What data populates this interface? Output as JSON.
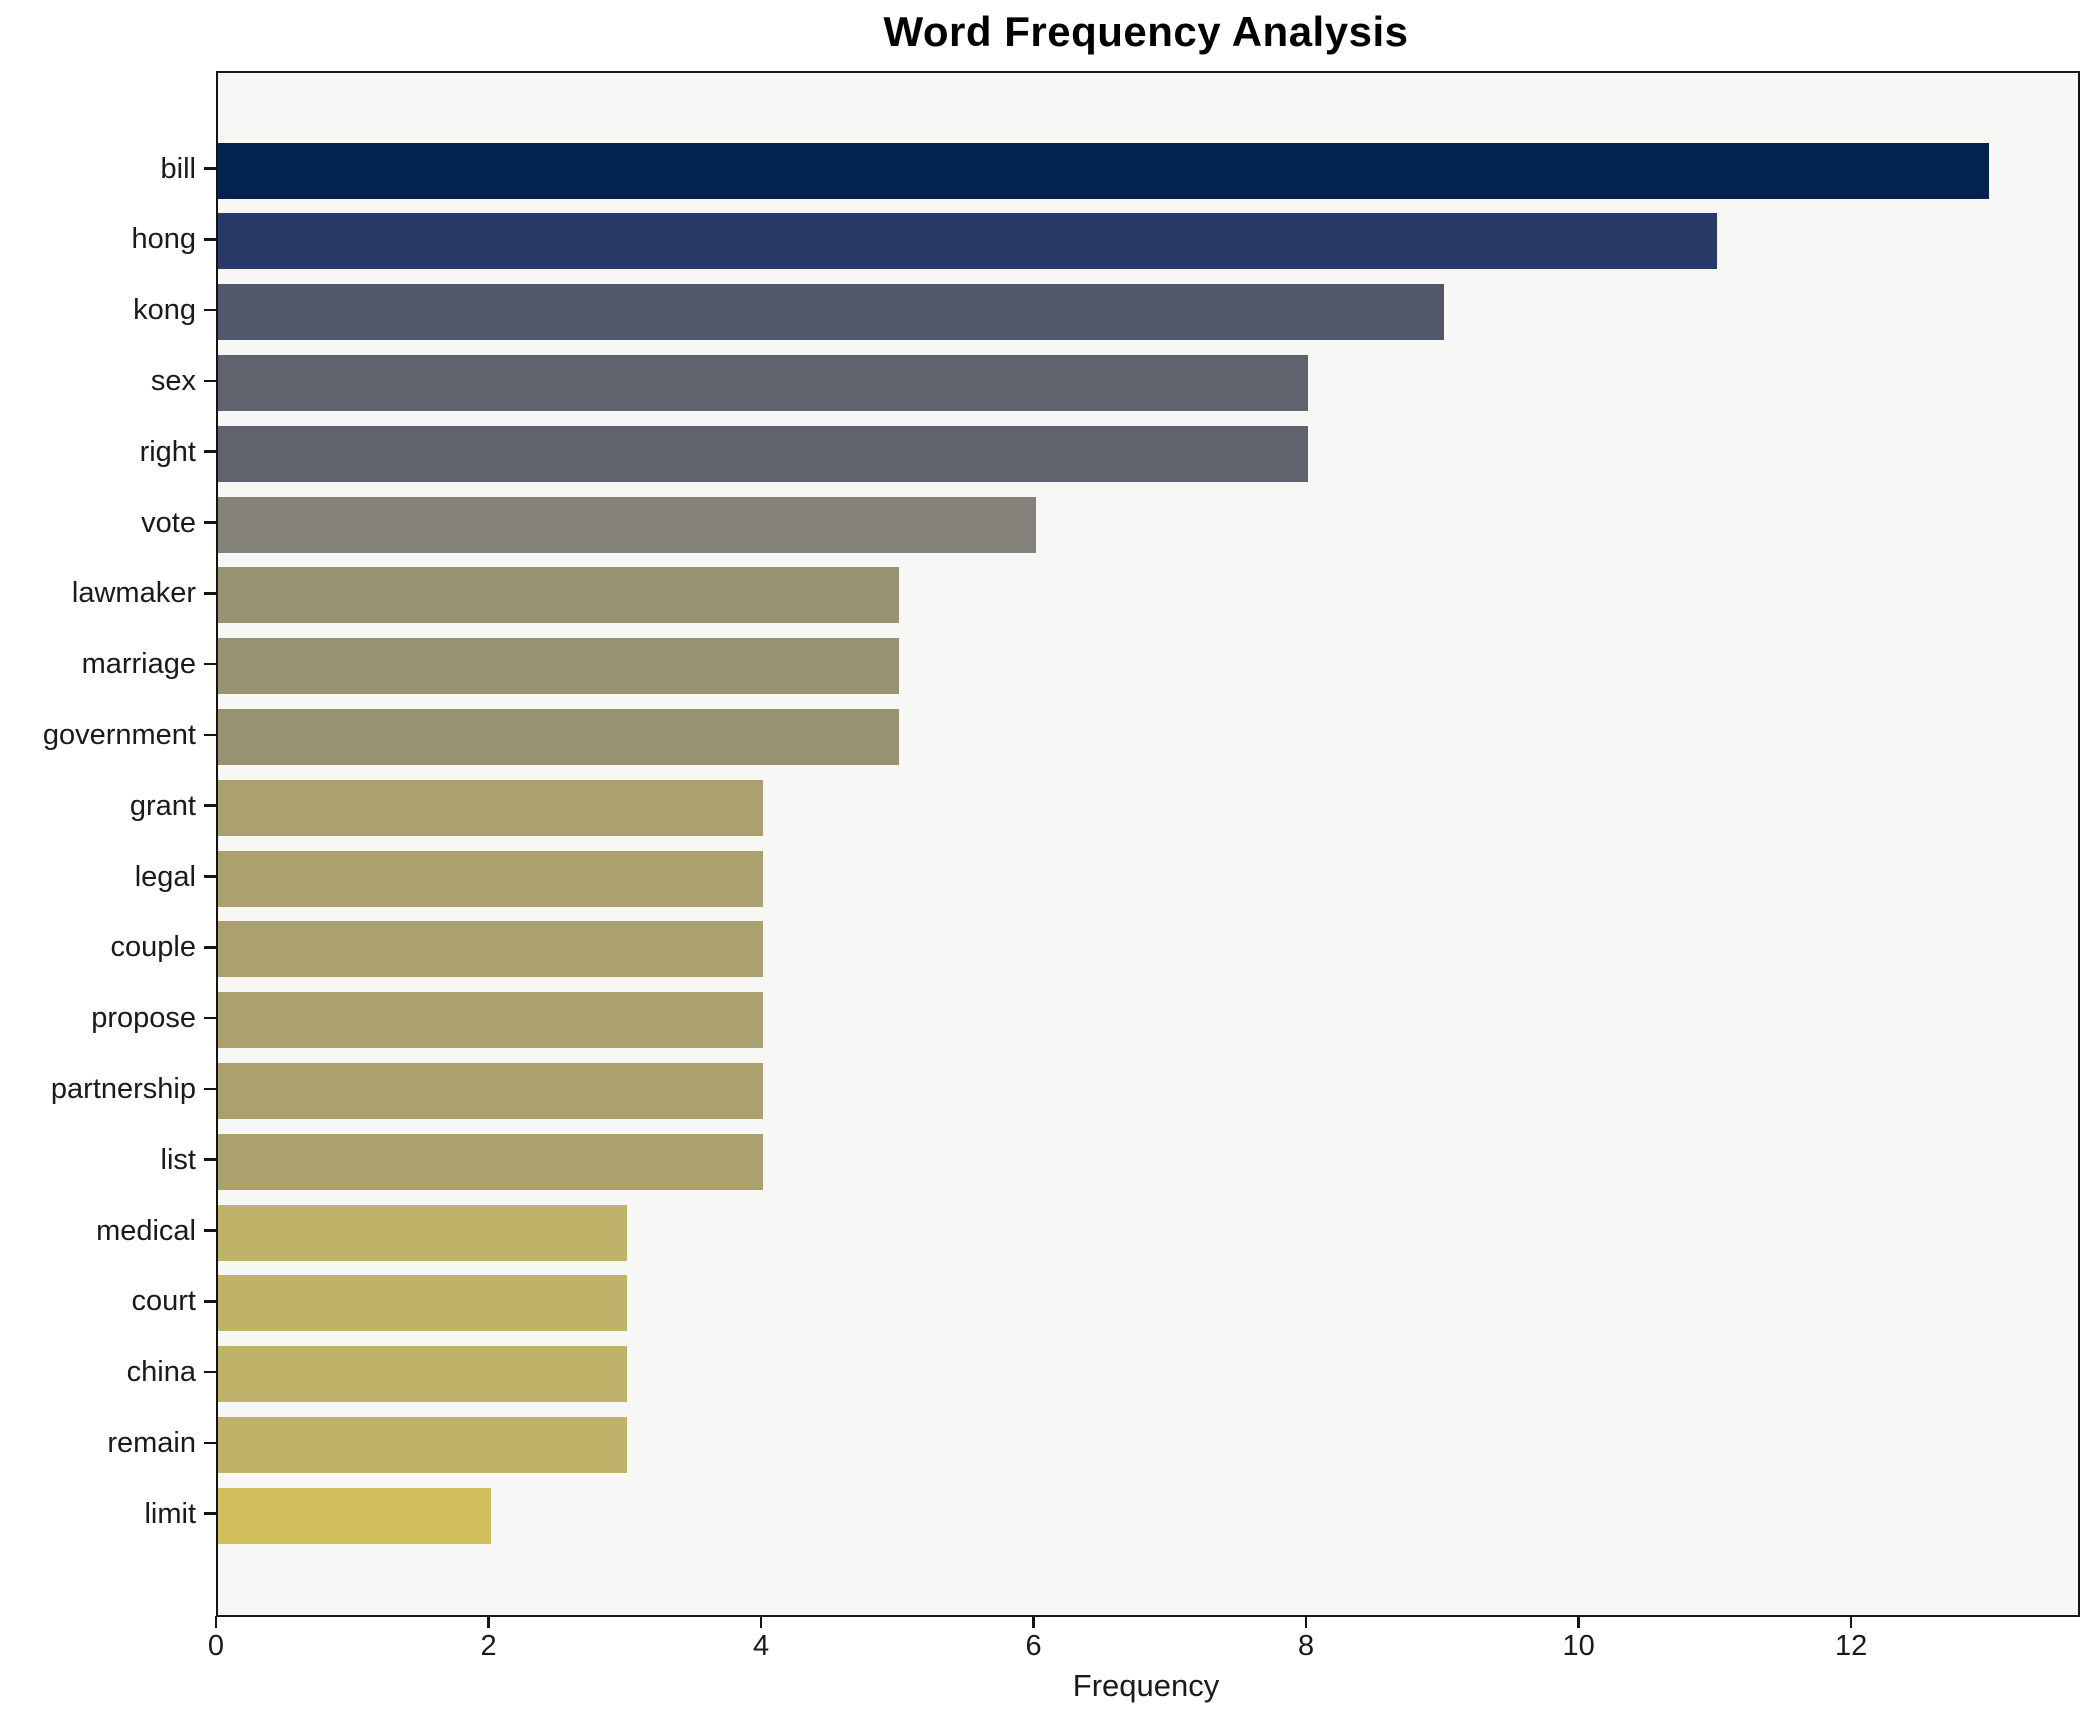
{
  "title": "Word Frequency Analysis",
  "xlabel": "Frequency",
  "chart_data": {
    "type": "bar",
    "orientation": "horizontal",
    "title": "Word Frequency Analysis",
    "xlabel": "Frequency",
    "ylabel": "",
    "categories": [
      "bill",
      "hong",
      "kong",
      "sex",
      "right",
      "vote",
      "lawmaker",
      "marriage",
      "government",
      "grant",
      "legal",
      "couple",
      "propose",
      "partnership",
      "list",
      "medical",
      "court",
      "china",
      "remain",
      "limit"
    ],
    "values": [
      13,
      11,
      9,
      8,
      8,
      6,
      5,
      5,
      5,
      4,
      4,
      4,
      4,
      4,
      4,
      3,
      3,
      3,
      3,
      2
    ],
    "bar_colors": [
      "#03224e",
      "#2a3a68",
      "#51566b",
      "#60626e",
      "#60626e",
      "#85827a",
      "#969272",
      "#969272",
      "#969272",
      "#aba16e",
      "#aba16e",
      "#aba16e",
      "#aba16e",
      "#aba16e",
      "#aba16e",
      "#bfb269",
      "#bfb269",
      "#bfb269",
      "#bfb269",
      "#d2c05d"
    ],
    "xlim": [
      0,
      13.65
    ],
    "xticks": [
      0,
      2,
      4,
      6,
      8,
      10,
      12
    ],
    "grid": false,
    "legend": null,
    "plot_bg": "#f7f7f6",
    "figure_bg": "#ffffff",
    "spine_color": "#141414"
  }
}
